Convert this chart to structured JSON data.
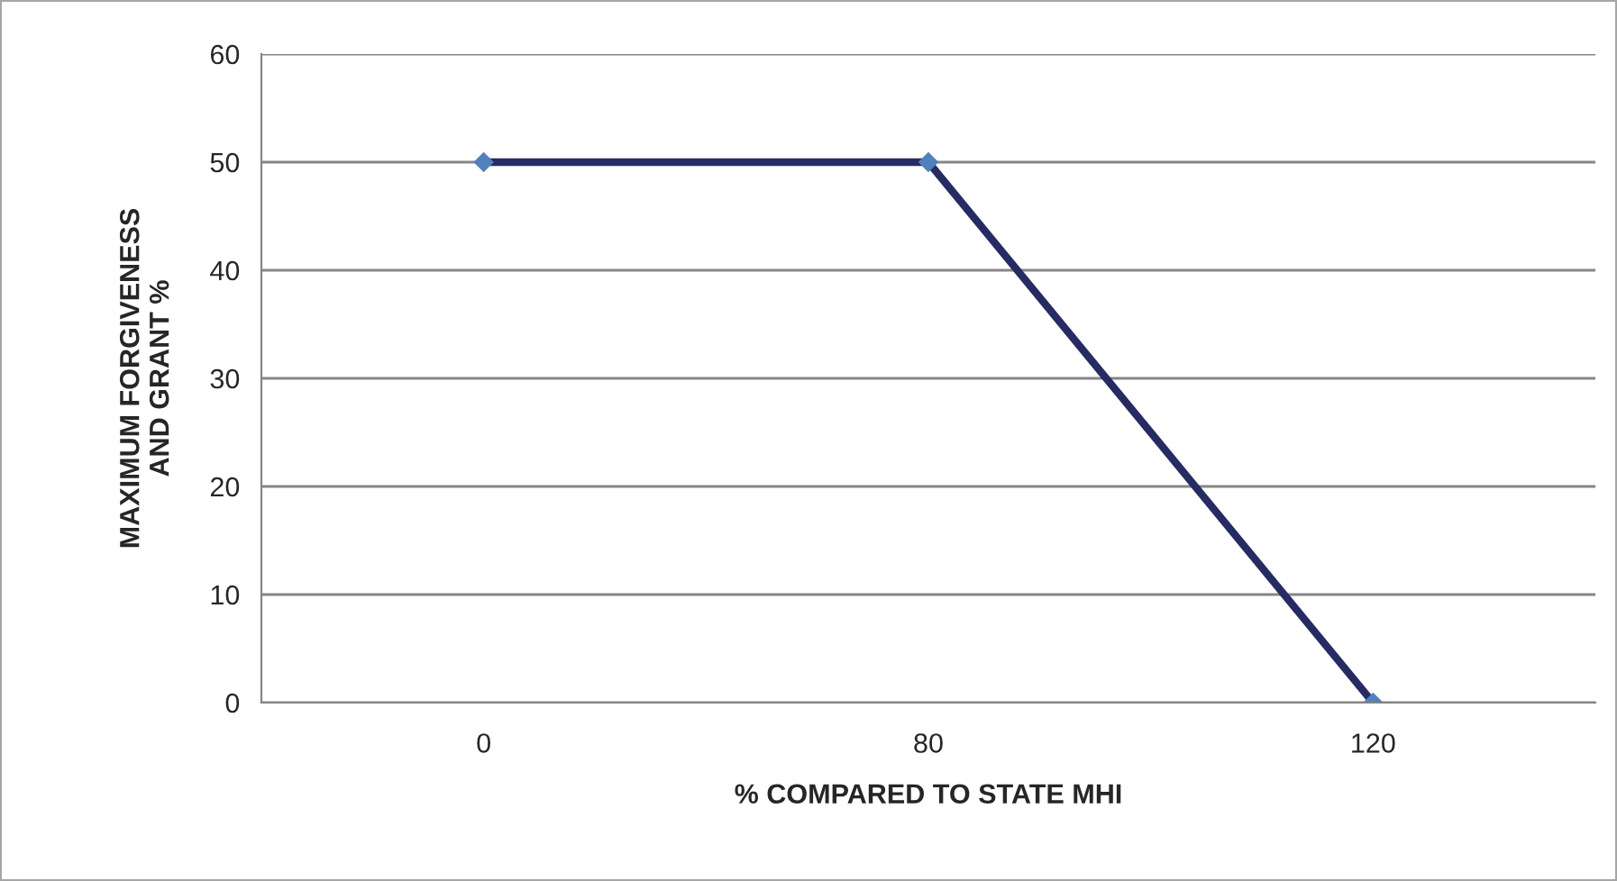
{
  "chart_data": {
    "type": "line",
    "xlabel": "% COMPARED TO STATE MHI",
    "ylabel": "MAXIMUM FORGIVENESS\nAND GRANT %",
    "categories": [
      "0",
      "80",
      "120"
    ],
    "series": [
      {
        "color": "#262b63",
        "values": [
          50,
          50,
          0
        ]
      }
    ],
    "ylim": [
      0,
      60
    ],
    "yticks": [
      0,
      10,
      20,
      30,
      40,
      50,
      60
    ],
    "grid": "y",
    "marker": "diamond",
    "line_style": "solid"
  }
}
